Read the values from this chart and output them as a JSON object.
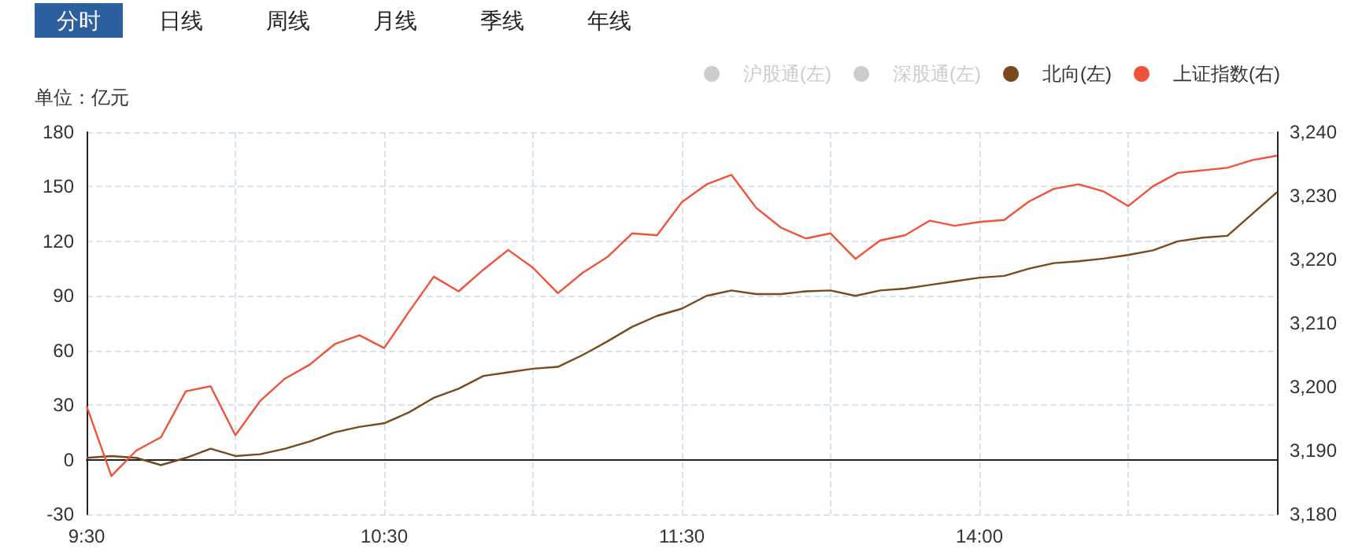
{
  "chart_data": {
    "type": "line",
    "annotations": [
      "分时",
      "日线",
      "周线",
      "月线",
      "季线",
      "年线"
    ],
    "ylabel": "单位：亿元",
    "categories": [
      "9:30",
      null,
      null,
      null,
      null,
      null,
      null,
      null,
      null,
      null,
      null,
      null,
      "10:30",
      null,
      null,
      null,
      null,
      null,
      null,
      null,
      null,
      null,
      null,
      null,
      "11:30",
      null,
      null,
      null,
      null,
      null,
      null,
      null,
      null,
      null,
      null,
      null,
      "14:00",
      null,
      null,
      null,
      null,
      null,
      null,
      null,
      null,
      null,
      null,
      null,
      null
    ],
    "series": [
      {
        "name": "沪股通(左)",
        "color": "#cccccc",
        "values": [
          null,
          null,
          null,
          null,
          null,
          null,
          null,
          null,
          null,
          null,
          null,
          null,
          null,
          null,
          null,
          null,
          null,
          null,
          null,
          null,
          null,
          null,
          null,
          null,
          null,
          null,
          null,
          null,
          null,
          null,
          null,
          null,
          null,
          null,
          null,
          null,
          null,
          null,
          null,
          null,
          null,
          null,
          null,
          null,
          null,
          null,
          null,
          null,
          null
        ]
      },
      {
        "name": "深股通(左)",
        "color": "#cccccc",
        "values": [
          null,
          null,
          null,
          null,
          null,
          null,
          null,
          null,
          null,
          null,
          null,
          null,
          null,
          null,
          null,
          null,
          null,
          null,
          null,
          null,
          null,
          null,
          null,
          null,
          null,
          null,
          null,
          null,
          null,
          null,
          null,
          null,
          null,
          null,
          null,
          null,
          null,
          null,
          null,
          null,
          null,
          null,
          null,
          null,
          null,
          null,
          null,
          null,
          null
        ]
      },
      {
        "name": "北向(左)",
        "color": "#7a4a1c",
        "values": [
          1,
          2,
          1,
          -3,
          1,
          6,
          2,
          3,
          6,
          10,
          15,
          18,
          20,
          26,
          34,
          39,
          46,
          48,
          50,
          51,
          57.5,
          65,
          73,
          79,
          83,
          90,
          93,
          91,
          91,
          92.5,
          93,
          90,
          93,
          94,
          96,
          98,
          100,
          101,
          105,
          108,
          109,
          110.5,
          112.5,
          115,
          120,
          122,
          123,
          135,
          147
        ]
      },
      {
        "name": "上证指数(右)",
        "color": "#f0533a",
        "axis": "y2",
        "values": [
          3197.0,
          3186.0,
          3190.0,
          3192.1,
          3199.3,
          3200.1,
          3192.4,
          3197.8,
          3201.3,
          3203.5,
          3206.7,
          3208.1,
          3206.1,
          3211.8,
          3217.3,
          3215.0,
          3218.4,
          3221.5,
          3218.7,
          3214.7,
          3217.9,
          3220.4,
          3224.1,
          3223.8,
          3229.0,
          3231.8,
          3233.3,
          3228.1,
          3225.0,
          3223.3,
          3224.1,
          3220.1,
          3223.0,
          3223.8,
          3226.1,
          3225.3,
          3225.9,
          3226.2,
          3229.1,
          3231.1,
          3231.8,
          3230.7,
          3228.4,
          3231.5,
          3233.6,
          3234.0,
          3234.4,
          3235.6,
          3236.3
        ]
      }
    ],
    "ylim": [
      -30,
      180
    ],
    "yticks": [
      -30,
      0,
      30,
      60,
      90,
      120,
      150,
      180
    ],
    "y2lim": [
      3180,
      3240
    ],
    "y2ticks": [
      {
        "value": 3180,
        "label": "3,180"
      },
      {
        "value": 3190,
        "label": "3,190"
      },
      {
        "value": 3200,
        "label": "3,200"
      },
      {
        "value": 3210,
        "label": "3,210"
      },
      {
        "value": 3220,
        "label": "3,220"
      },
      {
        "value": 3230,
        "label": "3,230"
      },
      {
        "value": 3240,
        "label": "3,240"
      }
    ],
    "grid": true,
    "legend": "top right"
  }
}
